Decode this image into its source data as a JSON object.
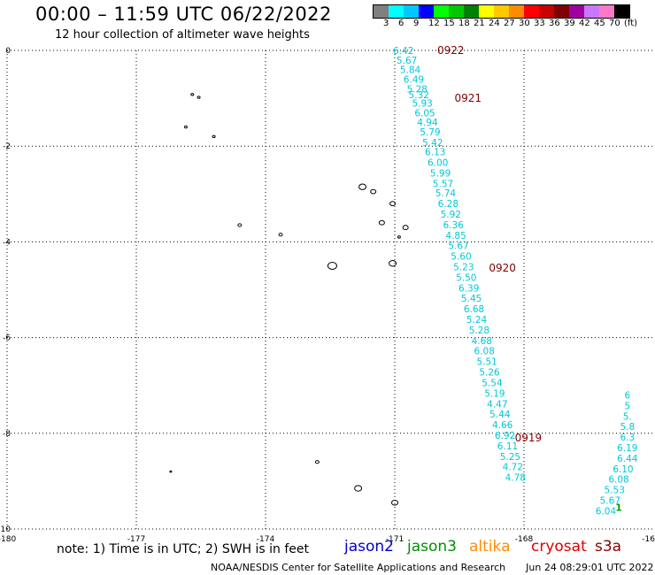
{
  "header": {
    "title": "00:00 – 11:59 UTC 06/22/2022",
    "subtitle": "12 hour collection of altimeter wave heights"
  },
  "color_scale": {
    "colors": [
      "#808080",
      "#00ffff",
      "#00c8ff",
      "#0000ff",
      "#00ff00",
      "#00c800",
      "#008000",
      "#ffff00",
      "#ffc800",
      "#ff8c00",
      "#ff0000",
      "#c80000",
      "#800000",
      "#a000a0",
      "#c878ff",
      "#ff78c8",
      "#000000"
    ],
    "labels": [
      "3",
      "6",
      "9",
      "12",
      "15",
      "18",
      "21",
      "24",
      "27",
      "30",
      "33",
      "36",
      "39",
      "42",
      "45",
      "70",
      "(ft)"
    ]
  },
  "map": {
    "lon_ticks": [
      "-180",
      "-177",
      "-174",
      "-171",
      "-168",
      "-16"
    ],
    "lat_ticks": [
      "0",
      "-2",
      "-4",
      "-6",
      "-8",
      "-10"
    ],
    "time_labels": [
      {
        "text": "0922",
        "lon": -169.7,
        "lat": 0.0
      },
      {
        "text": "0921",
        "lon": -169.3,
        "lat": -1.0
      },
      {
        "text": "0920",
        "lon": -168.5,
        "lat": -4.55
      },
      {
        "text": "0919",
        "lon": -167.9,
        "lat": -8.1
      }
    ],
    "track_a": [
      {
        "lon": -170.8,
        "lat": 0.0,
        "v": "6.42"
      },
      {
        "lon": -170.72,
        "lat": -0.2,
        "v": "5.67"
      },
      {
        "lon": -170.64,
        "lat": -0.4,
        "v": "5.84"
      },
      {
        "lon": -170.56,
        "lat": -0.6,
        "v": "6.49"
      },
      {
        "lon": -170.48,
        "lat": -0.8,
        "v": "5.28"
      },
      {
        "lon": -170.44,
        "lat": -0.92,
        "v": "5.32"
      },
      {
        "lon": -170.36,
        "lat": -1.1,
        "v": "5.93"
      },
      {
        "lon": -170.3,
        "lat": -1.3,
        "v": "6.05"
      },
      {
        "lon": -170.24,
        "lat": -1.5,
        "v": "4.94"
      },
      {
        "lon": -170.18,
        "lat": -1.7,
        "v": "5.79"
      },
      {
        "lon": -170.12,
        "lat": -1.92,
        "v": "5.42"
      },
      {
        "lon": -170.06,
        "lat": -2.12,
        "v": "6.13"
      },
      {
        "lon": -170.0,
        "lat": -2.34,
        "v": "6.00"
      },
      {
        "lon": -169.94,
        "lat": -2.56,
        "v": "5.99"
      },
      {
        "lon": -169.88,
        "lat": -2.78,
        "v": "5.57"
      },
      {
        "lon": -169.82,
        "lat": -2.98,
        "v": "5.74"
      },
      {
        "lon": -169.76,
        "lat": -3.2,
        "v": "6.28"
      },
      {
        "lon": -169.7,
        "lat": -3.42,
        "v": "5.92"
      },
      {
        "lon": -169.64,
        "lat": -3.64,
        "v": "6.36"
      },
      {
        "lon": -169.58,
        "lat": -3.86,
        "v": "4.85"
      },
      {
        "lon": -169.52,
        "lat": -4.08,
        "v": "5.67"
      },
      {
        "lon": -169.46,
        "lat": -4.3,
        "v": "5.60"
      },
      {
        "lon": -169.4,
        "lat": -4.52,
        "v": "5.23"
      },
      {
        "lon": -169.34,
        "lat": -4.74,
        "v": "5.50"
      },
      {
        "lon": -169.28,
        "lat": -4.96,
        "v": "6.39"
      },
      {
        "lon": -169.22,
        "lat": -5.18,
        "v": "5.45"
      },
      {
        "lon": -169.16,
        "lat": -5.4,
        "v": "6.68"
      },
      {
        "lon": -169.1,
        "lat": -5.62,
        "v": "5.24"
      },
      {
        "lon": -169.04,
        "lat": -5.84,
        "v": "5.28"
      },
      {
        "lon": -168.98,
        "lat": -6.06,
        "v": "4.68"
      },
      {
        "lon": -168.92,
        "lat": -6.28,
        "v": "6.08"
      },
      {
        "lon": -168.86,
        "lat": -6.5,
        "v": "5.51"
      },
      {
        "lon": -168.8,
        "lat": -6.72,
        "v": "5.26"
      },
      {
        "lon": -168.74,
        "lat": -6.94,
        "v": "5.54"
      },
      {
        "lon": -168.68,
        "lat": -7.16,
        "v": "5.19"
      },
      {
        "lon": -168.62,
        "lat": -7.38,
        "v": "4.47"
      },
      {
        "lon": -168.56,
        "lat": -7.6,
        "v": "5.44"
      },
      {
        "lon": -168.5,
        "lat": -7.82,
        "v": "4.66"
      },
      {
        "lon": -168.44,
        "lat": -8.04,
        "v": "6.92"
      },
      {
        "lon": -168.38,
        "lat": -8.26,
        "v": "6.11"
      },
      {
        "lon": -168.32,
        "lat": -8.48,
        "v": "5.25"
      },
      {
        "lon": -168.26,
        "lat": -8.7,
        "v": "4.72"
      },
      {
        "lon": -168.2,
        "lat": -8.92,
        "v": "4.78"
      }
    ],
    "track_b": [
      {
        "lon": -165.6,
        "lat": -7.2,
        "v": "6"
      },
      {
        "lon": -165.6,
        "lat": -7.42,
        "v": "5"
      },
      {
        "lon": -165.6,
        "lat": -7.64,
        "v": "5."
      },
      {
        "lon": -165.6,
        "lat": -7.86,
        "v": "5.8"
      },
      {
        "lon": -165.6,
        "lat": -8.08,
        "v": "6.3"
      },
      {
        "lon": -165.6,
        "lat": -8.3,
        "v": "6.19"
      },
      {
        "lon": -165.6,
        "lat": -8.52,
        "v": "6.44"
      },
      {
        "lon": -165.7,
        "lat": -8.74,
        "v": "6.10"
      },
      {
        "lon": -165.8,
        "lat": -8.96,
        "v": "6.08"
      },
      {
        "lon": -165.9,
        "lat": -9.18,
        "v": "5.53"
      },
      {
        "lon": -166.0,
        "lat": -9.4,
        "v": "5.67"
      },
      {
        "lon": -166.1,
        "lat": -9.62,
        "v": "6.04"
      },
      {
        "lon": -165.8,
        "lat": -9.55,
        "v": "1",
        "green": true
      }
    ],
    "islands": [
      {
        "lon": -175.7,
        "lat": -0.92,
        "r": 1.5
      },
      {
        "lon": -175.55,
        "lat": -0.98,
        "r": 1.5
      },
      {
        "lon": -175.85,
        "lat": -1.6,
        "r": 1.5
      },
      {
        "lon": -175.2,
        "lat": -1.8,
        "r": 1.5
      },
      {
        "lon": -171.75,
        "lat": -2.85,
        "r": 4
      },
      {
        "lon": -171.5,
        "lat": -2.95,
        "r": 3
      },
      {
        "lon": -171.05,
        "lat": -3.2,
        "r": 3
      },
      {
        "lon": -171.3,
        "lat": -3.6,
        "r": 3
      },
      {
        "lon": -170.75,
        "lat": -3.7,
        "r": 3
      },
      {
        "lon": -174.6,
        "lat": -3.65,
        "r": 2
      },
      {
        "lon": -173.65,
        "lat": -3.85,
        "r": 2
      },
      {
        "lon": -170.9,
        "lat": -3.9,
        "r": 1.5
      },
      {
        "lon": -172.45,
        "lat": -4.5,
        "r": 5
      },
      {
        "lon": -171.05,
        "lat": -4.45,
        "r": 4
      },
      {
        "lon": -172.8,
        "lat": -8.6,
        "r": 2
      },
      {
        "lon": -176.2,
        "lat": -8.8,
        "r": 1
      },
      {
        "lon": -171.85,
        "lat": -9.15,
        "r": 4
      },
      {
        "lon": -171.0,
        "lat": -9.45,
        "r": 3.5
      }
    ]
  },
  "footer": {
    "note": "note:  1) Time is in UTC;  2) SWH is in feet",
    "satellites": [
      {
        "name": "jason2",
        "color": "#0000d0"
      },
      {
        "name": "jason3",
        "color": "#009000"
      },
      {
        "name": "altika",
        "color": "#ff8c00"
      },
      {
        "name": "cryosat",
        "color": "#e00000"
      },
      {
        "name": "s3a",
        "color": "#8b0000"
      }
    ],
    "credit_left": "NOAA/NESDIS Center for Satellite Applications and Research",
    "credit_right": "Jun 24 08:29:01 UTC 2022"
  }
}
